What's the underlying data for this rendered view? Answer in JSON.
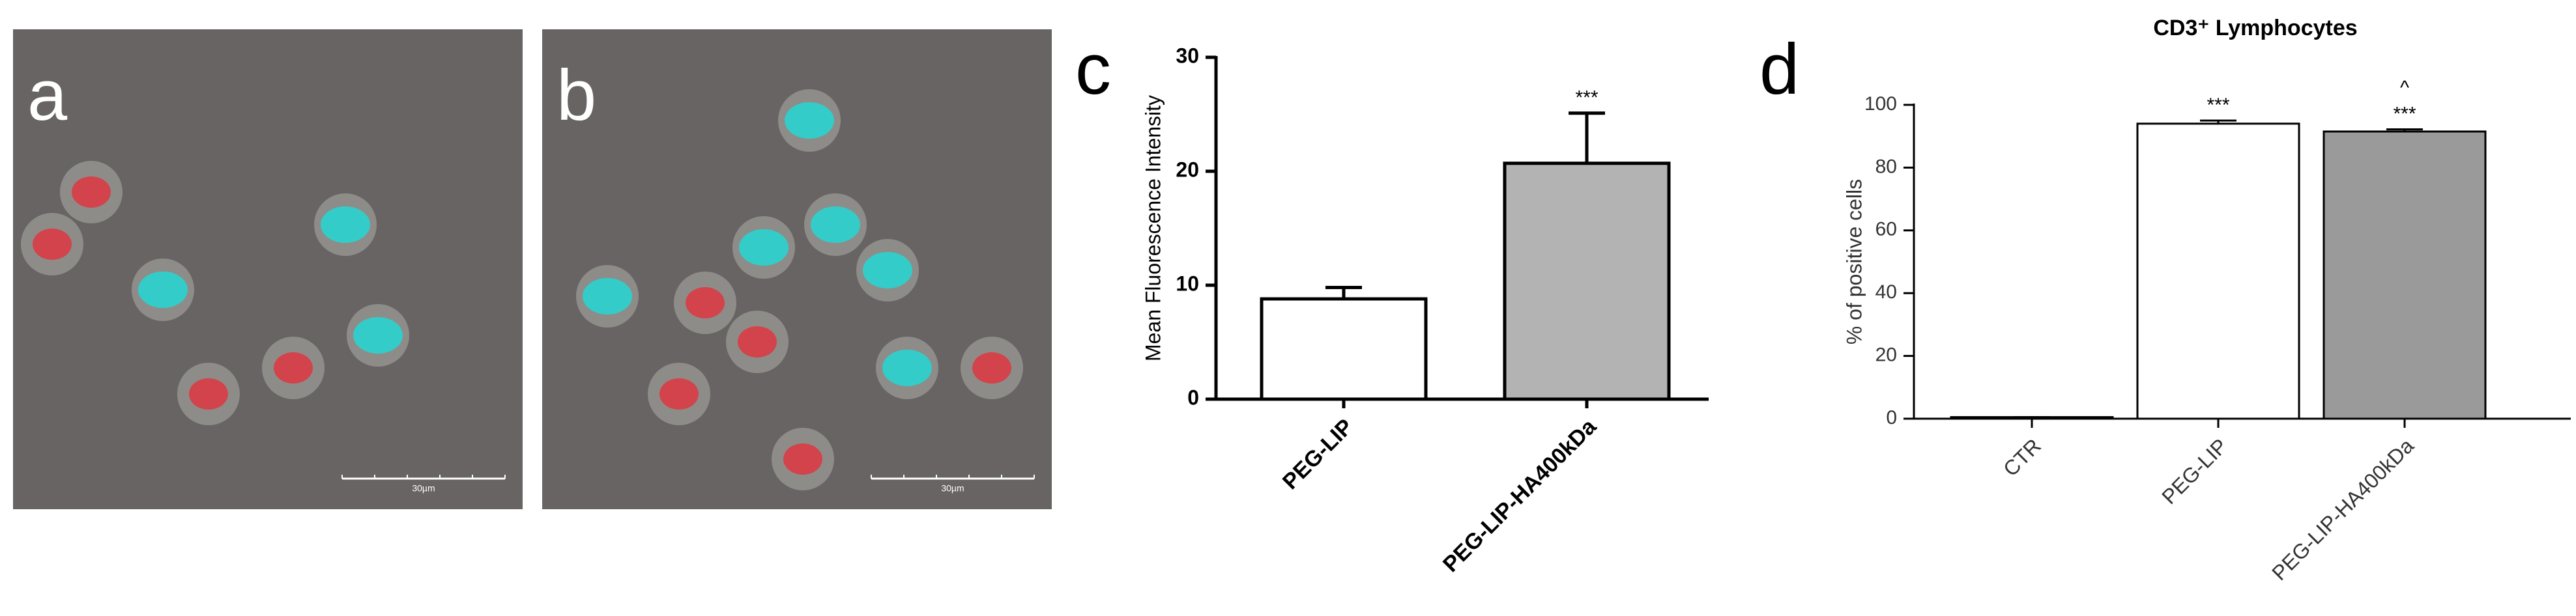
{
  "images": [
    {
      "label": "a",
      "scale_bar": "30µm"
    },
    {
      "label": "b",
      "scale_bar": "30µm"
    }
  ],
  "chart_data": [
    {
      "type": "bar",
      "panel_label": "c",
      "ylabel": "Mean Fluorescence Intensity",
      "categories": [
        "PEG-LIP",
        "PEG-LIP-HA400kDa"
      ],
      "values": [
        8.8,
        20.7
      ],
      "errors": [
        1.0,
        4.4
      ],
      "colors": [
        "#ffffff",
        "#b3b3b3"
      ],
      "annotations": [
        null,
        [
          "***"
        ]
      ],
      "ylim": [
        0,
        30
      ],
      "yticks": [
        0,
        10,
        20,
        30
      ],
      "grid": false
    },
    {
      "type": "bar",
      "panel_label": "d",
      "title": "CD3⁺ Lymphocytes",
      "ylabel": "% of positive cells",
      "categories": [
        "CTR",
        "PEG-LIP",
        "PEG-LIP-HA400kDa"
      ],
      "values": [
        0.5,
        94,
        91.5
      ],
      "errors": [
        0,
        1,
        0.7
      ],
      "colors": [
        "#ffffff",
        "#ffffff",
        "#9a9a9a"
      ],
      "annotations": [
        null,
        [
          "***"
        ],
        [
          "^",
          "***"
        ]
      ],
      "ylim": [
        0,
        100
      ],
      "yticks": [
        0,
        20,
        40,
        60,
        80,
        100
      ],
      "grid": false
    }
  ]
}
